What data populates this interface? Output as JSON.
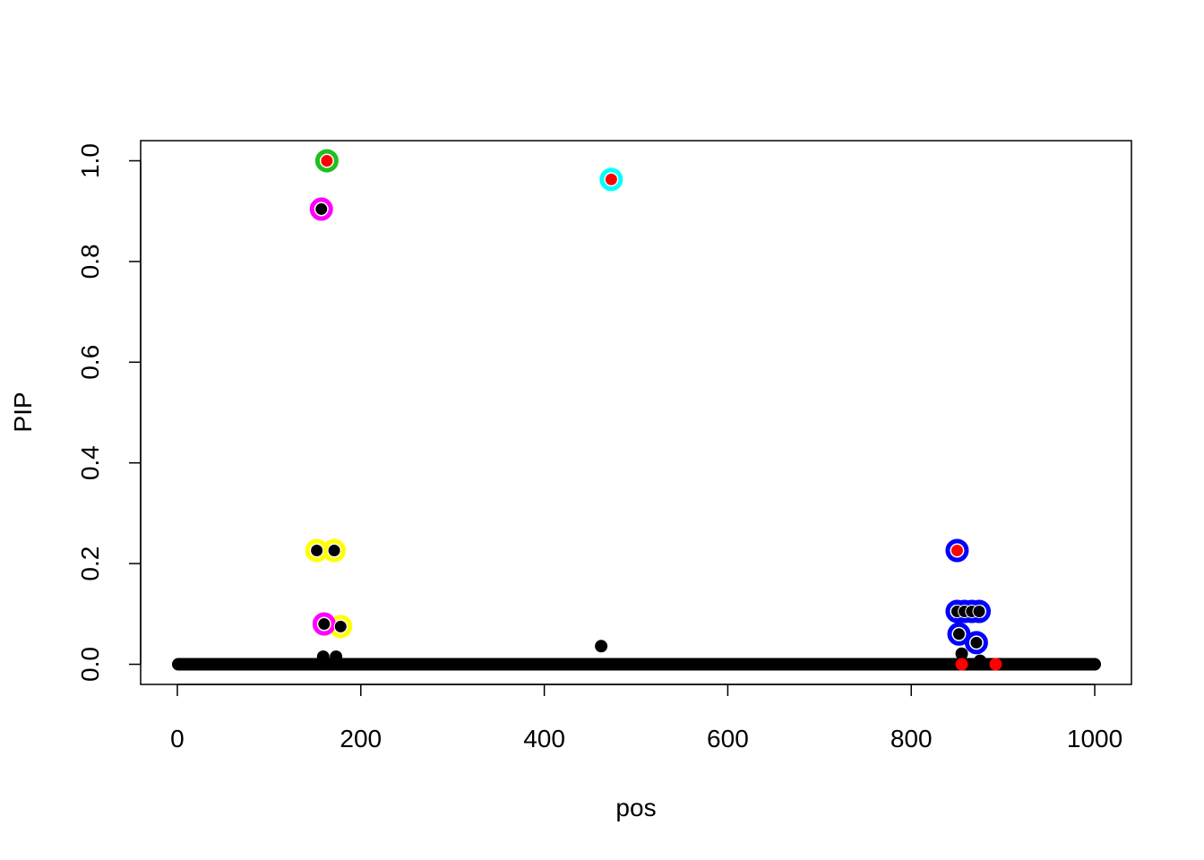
{
  "chart_data": {
    "type": "scatter",
    "title": "",
    "xlabel": "pos",
    "ylabel": "PIP",
    "xlim": [
      -40,
      1040
    ],
    "ylim": [
      -0.04,
      1.04
    ],
    "grid": false,
    "xticks": [
      0,
      200,
      400,
      600,
      800,
      1000
    ],
    "xtick_labels": [
      "0",
      "200",
      "400",
      "600",
      "800",
      "1000"
    ],
    "yticks": [
      0.0,
      0.2,
      0.4,
      0.6,
      0.8,
      1.0
    ],
    "ytick_labels": [
      "0.0",
      "0.2",
      "0.4",
      "0.6",
      "0.8",
      "1.0"
    ],
    "baseline_points": {
      "pos_range": [
        1,
        1000
      ],
      "pip": 0,
      "color": "#000000"
    },
    "points": [
      {
        "pos": 163,
        "pip": 1.0,
        "color": "#ff0000",
        "ring": "#1fbf1f"
      },
      {
        "pos": 157,
        "pip": 0.904,
        "color": "#000000",
        "ring": "#ff00ff"
      },
      {
        "pos": 473,
        "pip": 0.963,
        "color": "#ff0000",
        "ring": "#00ffff"
      },
      {
        "pos": 152,
        "pip": 0.226,
        "color": "#000000",
        "ring": "#ffff00"
      },
      {
        "pos": 171,
        "pip": 0.226,
        "color": "#000000",
        "ring": "#ffff00"
      },
      {
        "pos": 178,
        "pip": 0.075,
        "color": "#000000",
        "ring": "#ffff00"
      },
      {
        "pos": 160,
        "pip": 0.08,
        "color": "#000000",
        "ring": "#ff00ff"
      },
      {
        "pos": 159,
        "pip": 0.015,
        "color": "#000000",
        "ring": null
      },
      {
        "pos": 173,
        "pip": 0.015,
        "color": "#000000",
        "ring": null
      },
      {
        "pos": 462,
        "pip": 0.036,
        "color": "#000000",
        "ring": null
      },
      {
        "pos": 850,
        "pip": 0.226,
        "color": "#ff0000",
        "ring": "#0000ff"
      },
      {
        "pos": 850,
        "pip": 0.105,
        "color": "#000000",
        "ring": "#0000ff"
      },
      {
        "pos": 858,
        "pip": 0.105,
        "color": "#000000",
        "ring": "#0000ff"
      },
      {
        "pos": 866,
        "pip": 0.105,
        "color": "#000000",
        "ring": "#0000ff"
      },
      {
        "pos": 874,
        "pip": 0.105,
        "color": "#000000",
        "ring": "#0000ff"
      },
      {
        "pos": 852,
        "pip": 0.06,
        "color": "#000000",
        "ring": "#0000ff"
      },
      {
        "pos": 871,
        "pip": 0.043,
        "color": "#000000",
        "ring": "#0000ff"
      },
      {
        "pos": 855,
        "pip": 0.021,
        "color": "#000000",
        "ring": null
      },
      {
        "pos": 875,
        "pip": 0.007,
        "color": "#000000",
        "ring": null
      },
      {
        "pos": 855,
        "pip": 0.0,
        "color": "#ff0000",
        "ring": null
      },
      {
        "pos": 892,
        "pip": 0.0,
        "color": "#ff0000",
        "ring": null
      }
    ]
  }
}
